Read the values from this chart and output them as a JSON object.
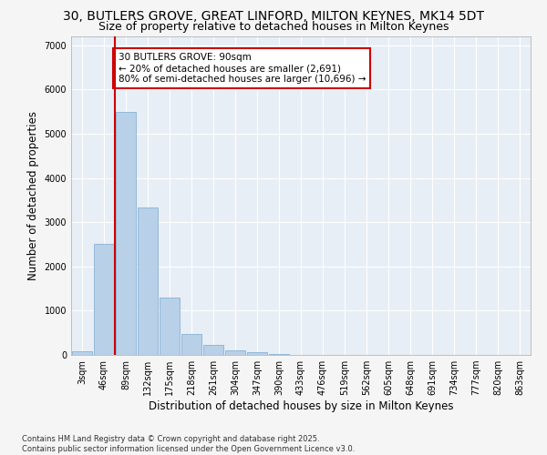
{
  "title_line1": "30, BUTLERS GROVE, GREAT LINFORD, MILTON KEYNES, MK14 5DT",
  "title_line2": "Size of property relative to detached houses in Milton Keynes",
  "xlabel": "Distribution of detached houses by size in Milton Keynes",
  "ylabel": "Number of detached properties",
  "categories": [
    "3sqm",
    "46sqm",
    "89sqm",
    "132sqm",
    "175sqm",
    "218sqm",
    "261sqm",
    "304sqm",
    "347sqm",
    "390sqm",
    "433sqm",
    "476sqm",
    "519sqm",
    "562sqm",
    "605sqm",
    "648sqm",
    "691sqm",
    "734sqm",
    "777sqm",
    "820sqm",
    "863sqm"
  ],
  "values": [
    80,
    2520,
    5500,
    3340,
    1300,
    480,
    220,
    100,
    55,
    30,
    0,
    0,
    0,
    0,
    0,
    0,
    0,
    0,
    0,
    0,
    0
  ],
  "bar_color": "#b8d0e8",
  "bar_edge_color": "#7aaad0",
  "vline_color": "#cc0000",
  "annotation_text": "30 BUTLERS GROVE: 90sqm\n← 20% of detached houses are smaller (2,691)\n80% of semi-detached houses are larger (10,696) →",
  "annotation_box_color": "#cc0000",
  "ylim": [
    0,
    7200
  ],
  "yticks": [
    0,
    1000,
    2000,
    3000,
    4000,
    5000,
    6000,
    7000
  ],
  "background_color": "#e8eef5",
  "grid_color": "#ffffff",
  "fig_bg_color": "#f5f5f5",
  "footer_line1": "Contains HM Land Registry data © Crown copyright and database right 2025.",
  "footer_line2": "Contains public sector information licensed under the Open Government Licence v3.0.",
  "title_fontsize": 10,
  "subtitle_fontsize": 9,
  "axis_label_fontsize": 8.5,
  "tick_fontsize": 7,
  "annotation_fontsize": 7.5,
  "footer_fontsize": 6
}
